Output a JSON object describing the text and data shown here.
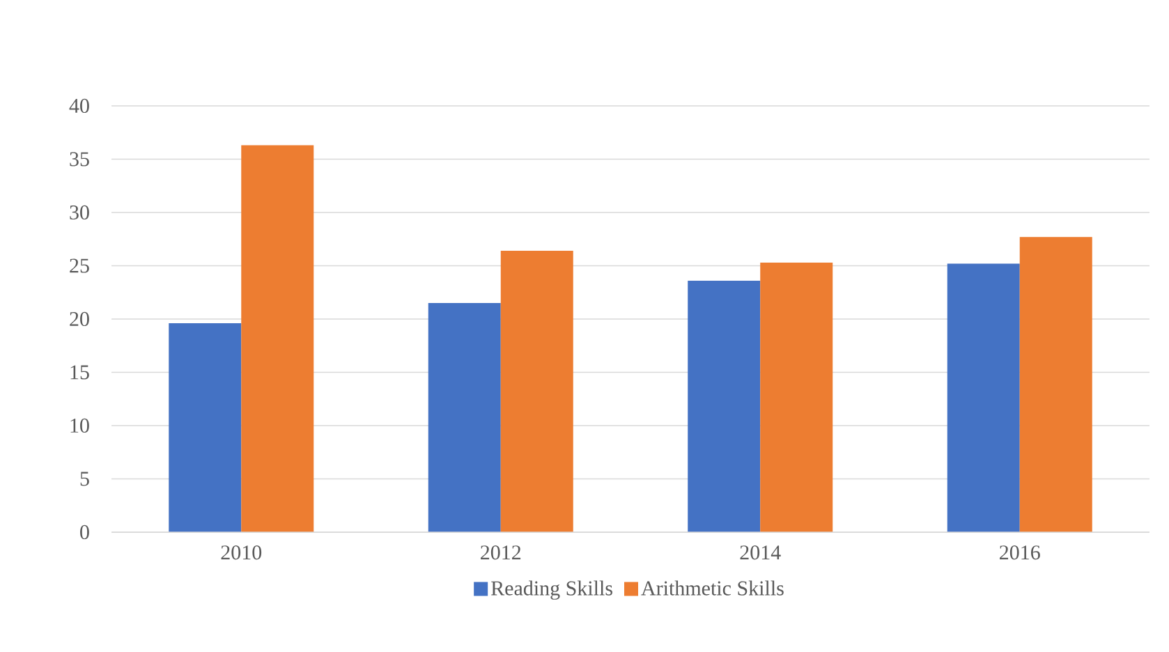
{
  "chart_data": {
    "type": "bar",
    "categories": [
      "2010",
      "2012",
      "2014",
      "2016"
    ],
    "series": [
      {
        "name": "Reading Skills",
        "color": "#4472c4",
        "values": [
          19.6,
          21.5,
          23.6,
          25.2
        ]
      },
      {
        "name": "Arithmetic Skills",
        "color": "#ed7d31",
        "values": [
          36.3,
          26.4,
          25.3,
          27.7
        ]
      }
    ],
    "ylim": [
      0,
      40
    ],
    "yticks": [
      0,
      5,
      10,
      15,
      20,
      25,
      30,
      35,
      40
    ],
    "grid": "y",
    "legend": "bottom"
  }
}
